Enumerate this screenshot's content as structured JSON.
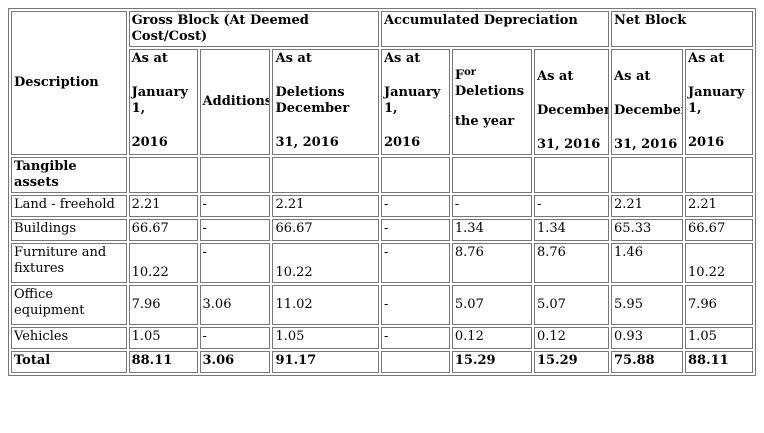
{
  "groups": {
    "gross": "Gross Block (At Deemed Cost/Cost)",
    "acc": "Accumulated Depreciation",
    "net": "Net Block"
  },
  "headers": {
    "description": "Description",
    "g_open": {
      "l1": "As at",
      "l2": "January",
      "l3": "1,",
      "l4": "2016"
    },
    "g_add": "Additions",
    "g_del": {
      "l1": "As at",
      "l2": "Deletions",
      "l3": "December",
      "l4": "31, 2016"
    },
    "a_open": {
      "l1": "As at",
      "l2": "January",
      "l3": "1,",
      "l4": "2016"
    },
    "a_year": {
      "f": "F",
      "or": "or",
      "l2": "Deletions",
      "l3": "the year"
    },
    "a_del": {
      "l1": "As at",
      "l2": "December",
      "l3": "31, 2016"
    },
    "n_close": {
      "l1": "As at",
      "l2": "December",
      "l3": "31, 2016"
    },
    "n_open": {
      "l1": "As at",
      "l2": "January",
      "l3": "1,",
      "l4": "2016"
    }
  },
  "section_label": "Tangible assets",
  "rows": [
    {
      "desc": "Land - freehold",
      "c": [
        "2.21",
        "-",
        "2.21",
        "-",
        "-",
        "-",
        "2.21",
        "2.21"
      ]
    },
    {
      "desc": "Buildings",
      "c": [
        "66.67",
        "-",
        "66.67",
        "-",
        "1.34",
        "1.34",
        "65.33",
        "66.67"
      ]
    },
    {
      "desc": "Furniture and fixtures",
      "c": [
        "10.22",
        "-",
        "10.22",
        "-",
        "8.76",
        "8.76",
        "1.46",
        "10.22"
      ]
    },
    {
      "desc": "Office equipment",
      "c": [
        "7.96",
        "3.06",
        "11.02",
        "-",
        "5.07",
        "5.07",
        "5.95",
        "7.96"
      ]
    },
    {
      "desc": "Vehicles",
      "c": [
        "1.05",
        "-",
        "1.05",
        "-",
        "0.12",
        "0.12",
        "0.93",
        "1.05"
      ]
    }
  ],
  "total": {
    "desc": "Total",
    "c": [
      "88.11",
      "3.06",
      "91.17",
      "",
      "15.29",
      "15.29",
      "75.88",
      "88.11"
    ]
  }
}
